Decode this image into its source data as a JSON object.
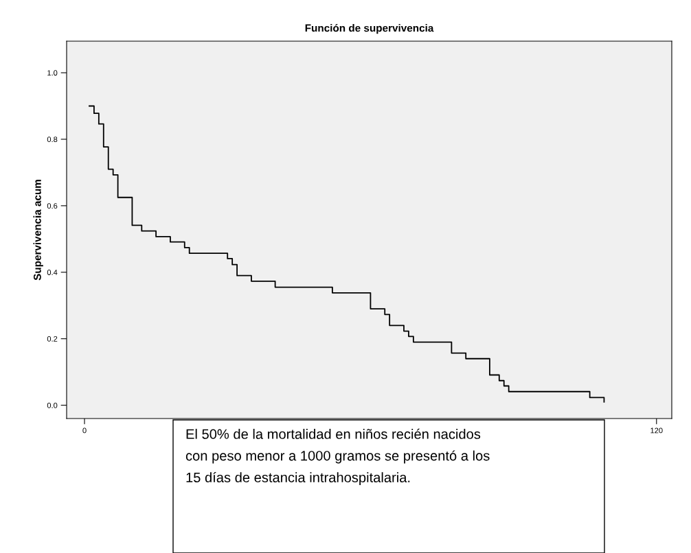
{
  "chart_data": {
    "type": "step",
    "title": "Función de supervivencia",
    "ylabel": "Supervivencia acum",
    "x": [
      1,
      2,
      3,
      4,
      5,
      6,
      7,
      10,
      12,
      15,
      18,
      21,
      22,
      30,
      31,
      32,
      35,
      40,
      52,
      60,
      63,
      64,
      67,
      68,
      69,
      77,
      80,
      85,
      87,
      88,
      89,
      106,
      109
    ],
    "series": [
      {
        "color": "#000000",
        "values": [
          0.9,
          0.878,
          0.846,
          0.777,
          0.71,
          0.693,
          0.625,
          0.541,
          0.524,
          0.507,
          0.491,
          0.474,
          0.457,
          0.441,
          0.423,
          0.39,
          0.373,
          0.355,
          0.338,
          0.29,
          0.273,
          0.24,
          0.223,
          0.207,
          0.19,
          0.157,
          0.14,
          0.091,
          0.074,
          0.058,
          0.041,
          0.023,
          0.01
        ]
      }
    ],
    "xlim": [
      -3.75,
      123.2
    ],
    "ylim": [
      -0.04,
      1.095
    ],
    "xticks": [
      0,
      120
    ],
    "yticks": [
      {
        "value": 0,
        "label": "0.0"
      },
      {
        "value": 0.2,
        "label": "0.2"
      },
      {
        "value": 0.4,
        "label": "0.4"
      },
      {
        "value": 0.6,
        "label": "0.6"
      },
      {
        "value": 0.8,
        "label": "0.8"
      },
      {
        "value": 1.0,
        "label": "1.0"
      }
    ],
    "grid": false,
    "legend": false,
    "annotations": [
      "El 50% de la mortalidad en niños recién nacidos\ncon peso menor a 1000 gramos se presentó a los\n15 días de estancia intrahospitalaria."
    ]
  }
}
